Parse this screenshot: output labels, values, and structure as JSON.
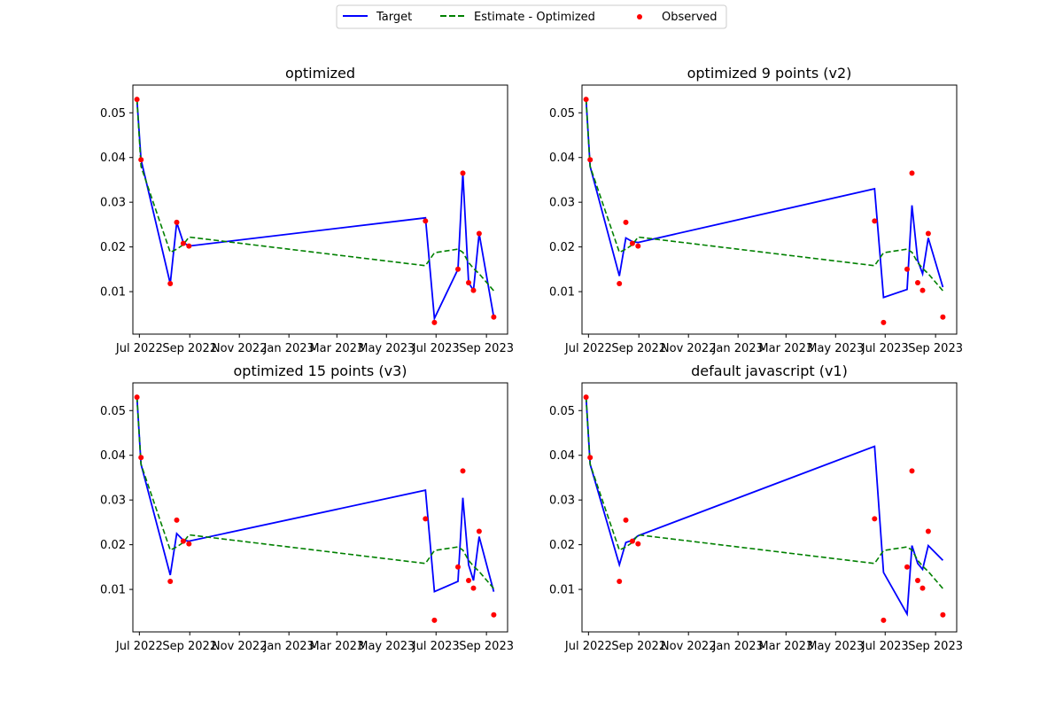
{
  "legend": {
    "entries": [
      {
        "label": "Target",
        "style": "solid",
        "color": "#0000ff"
      },
      {
        "label": "Estimate - Optimized",
        "style": "dashed",
        "color": "#008000"
      },
      {
        "label": "Observed",
        "style": "marker",
        "color": "#ff0000"
      }
    ],
    "placement": "top-center"
  },
  "chart_data": [
    {
      "type": "line",
      "title": "optimized",
      "xlabel": "",
      "ylabel": "",
      "x_ticks": [
        "Jul 2022",
        "Sep 2022",
        "Nov 2022",
        "Jan 2023",
        "Mar 2023",
        "May 2023",
        "Jul 2023",
        "Sep 2023"
      ],
      "y_ticks": [
        "0.01",
        "0.02",
        "0.03",
        "0.04",
        "0.05"
      ],
      "xlim": [
        "2022-06-23",
        "2023-09-27"
      ],
      "ylim": [
        0.0005,
        0.0562
      ],
      "grid": false,
      "series": [
        {
          "name": "Target",
          "x": [
            "2022-06-28",
            "2022-07-03",
            "2022-08-08",
            "2022-08-16",
            "2022-08-24",
            "2022-08-31",
            "2023-06-18",
            "2023-06-29",
            "2023-07-28",
            "2023-08-03",
            "2023-08-10",
            "2023-08-16",
            "2023-08-23",
            "2023-09-10"
          ],
          "y": [
            0.053,
            0.0395,
            0.0118,
            0.0255,
            0.021,
            0.0202,
            0.0265,
            0.004,
            0.015,
            0.0365,
            0.012,
            0.0103,
            0.023,
            0.0043
          ]
        },
        {
          "name": "Estimate - Optimized",
          "x": [
            "2022-06-28",
            "2022-07-03",
            "2022-08-08",
            "2022-08-16",
            "2022-08-24",
            "2022-08-31",
            "2023-06-18",
            "2023-06-29",
            "2023-07-28",
            "2023-08-03",
            "2023-08-10",
            "2023-08-16",
            "2023-08-23",
            "2023-09-10"
          ],
          "y": [
            0.053,
            0.038,
            0.0188,
            0.0195,
            0.0205,
            0.0222,
            0.0158,
            0.0187,
            0.0195,
            0.0188,
            0.0165,
            0.0152,
            0.014,
            0.0102
          ]
        },
        {
          "name": "Observed",
          "x": [
            "2022-06-28",
            "2022-07-03",
            "2022-08-08",
            "2022-08-16",
            "2022-08-24",
            "2022-08-31",
            "2023-06-18",
            "2023-06-29",
            "2023-07-28",
            "2023-08-03",
            "2023-08-10",
            "2023-08-16",
            "2023-08-23",
            "2023-09-10"
          ],
          "y": [
            0.053,
            0.0395,
            0.0118,
            0.0255,
            0.0208,
            0.0202,
            0.0258,
            0.0031,
            0.015,
            0.0365,
            0.012,
            0.0103,
            0.023,
            0.0043
          ]
        }
      ]
    },
    {
      "type": "line",
      "title": "optimized 9 points (v2)",
      "xlabel": "",
      "ylabel": "",
      "x_ticks": [
        "Jul 2022",
        "Sep 2022",
        "Nov 2022",
        "Jan 2023",
        "Mar 2023",
        "May 2023",
        "Jul 2023",
        "Sep 2023"
      ],
      "y_ticks": [
        "0.01",
        "0.02",
        "0.03",
        "0.04",
        "0.05"
      ],
      "xlim": [
        "2022-06-23",
        "2023-09-27"
      ],
      "ylim": [
        0.0005,
        0.0562
      ],
      "grid": false,
      "series": [
        {
          "name": "Target",
          "x": [
            "2022-06-28",
            "2022-07-03",
            "2022-08-08",
            "2022-08-16",
            "2022-08-24",
            "2022-08-31",
            "2023-06-18",
            "2023-06-29",
            "2023-07-28",
            "2023-08-03",
            "2023-08-10",
            "2023-08-16",
            "2023-08-23",
            "2023-09-10"
          ],
          "y": [
            0.053,
            0.038,
            0.0135,
            0.022,
            0.0212,
            0.021,
            0.033,
            0.0087,
            0.0105,
            0.0293,
            0.017,
            0.014,
            0.022,
            0.011
          ]
        },
        {
          "name": "Estimate - Optimized",
          "x": [
            "2022-06-28",
            "2022-07-03",
            "2022-08-08",
            "2022-08-16",
            "2022-08-24",
            "2022-08-31",
            "2023-06-18",
            "2023-06-29",
            "2023-07-28",
            "2023-08-03",
            "2023-08-10",
            "2023-08-16",
            "2023-08-23",
            "2023-09-10"
          ],
          "y": [
            0.053,
            0.038,
            0.0188,
            0.0195,
            0.0205,
            0.0222,
            0.0158,
            0.0187,
            0.0195,
            0.0188,
            0.0165,
            0.0152,
            0.014,
            0.0102
          ]
        },
        {
          "name": "Observed",
          "x": [
            "2022-06-28",
            "2022-07-03",
            "2022-08-08",
            "2022-08-16",
            "2022-08-24",
            "2022-08-31",
            "2023-06-18",
            "2023-06-29",
            "2023-07-28",
            "2023-08-03",
            "2023-08-10",
            "2023-08-16",
            "2023-08-23",
            "2023-09-10"
          ],
          "y": [
            0.053,
            0.0395,
            0.0118,
            0.0255,
            0.0208,
            0.0202,
            0.0258,
            0.0031,
            0.015,
            0.0365,
            0.012,
            0.0103,
            0.023,
            0.0043
          ]
        }
      ]
    },
    {
      "type": "line",
      "title": "optimized 15 points (v3)",
      "xlabel": "",
      "ylabel": "",
      "x_ticks": [
        "Jul 2022",
        "Sep 2022",
        "Nov 2022",
        "Jan 2023",
        "Mar 2023",
        "May 2023",
        "Jul 2023",
        "Sep 2023"
      ],
      "y_ticks": [
        "0.01",
        "0.02",
        "0.03",
        "0.04",
        "0.05"
      ],
      "xlim": [
        "2022-06-23",
        "2023-09-27"
      ],
      "ylim": [
        0.0005,
        0.0562
      ],
      "grid": false,
      "series": [
        {
          "name": "Target",
          "x": [
            "2022-06-28",
            "2022-07-03",
            "2022-08-08",
            "2022-08-16",
            "2022-08-24",
            "2022-08-31",
            "2023-06-18",
            "2023-06-29",
            "2023-07-28",
            "2023-08-03",
            "2023-08-10",
            "2023-08-16",
            "2023-08-23",
            "2023-09-10"
          ],
          "y": [
            0.053,
            0.038,
            0.0132,
            0.0225,
            0.021,
            0.0208,
            0.0322,
            0.0095,
            0.0118,
            0.0305,
            0.0155,
            0.012,
            0.0218,
            0.0095
          ]
        },
        {
          "name": "Estimate - Optimized",
          "x": [
            "2022-06-28",
            "2022-07-03",
            "2022-08-08",
            "2022-08-16",
            "2022-08-24",
            "2022-08-31",
            "2023-06-18",
            "2023-06-29",
            "2023-07-28",
            "2023-08-03",
            "2023-08-10",
            "2023-08-16",
            "2023-08-23",
            "2023-09-10"
          ],
          "y": [
            0.053,
            0.038,
            0.0188,
            0.0195,
            0.0205,
            0.0222,
            0.0158,
            0.0187,
            0.0195,
            0.0188,
            0.0165,
            0.0152,
            0.014,
            0.0102
          ]
        },
        {
          "name": "Observed",
          "x": [
            "2022-06-28",
            "2022-07-03",
            "2022-08-08",
            "2022-08-16",
            "2022-08-24",
            "2022-08-31",
            "2023-06-18",
            "2023-06-29",
            "2023-07-28",
            "2023-08-03",
            "2023-08-10",
            "2023-08-16",
            "2023-08-23",
            "2023-09-10"
          ],
          "y": [
            0.053,
            0.0395,
            0.0118,
            0.0255,
            0.0208,
            0.0202,
            0.0258,
            0.0031,
            0.015,
            0.0365,
            0.012,
            0.0103,
            0.023,
            0.0043
          ]
        }
      ]
    },
    {
      "type": "line",
      "title": "default javascript (v1)",
      "xlabel": "",
      "ylabel": "",
      "x_ticks": [
        "Jul 2022",
        "Sep 2022",
        "Nov 2022",
        "Jan 2023",
        "Mar 2023",
        "May 2023",
        "Jul 2023",
        "Sep 2023"
      ],
      "y_ticks": [
        "0.01",
        "0.02",
        "0.03",
        "0.04",
        "0.05"
      ],
      "xlim": [
        "2022-06-23",
        "2023-09-27"
      ],
      "ylim": [
        0.0005,
        0.0562
      ],
      "grid": false,
      "series": [
        {
          "name": "Target",
          "x": [
            "2022-06-28",
            "2022-07-03",
            "2022-08-08",
            "2022-08-16",
            "2022-08-24",
            "2022-08-31",
            "2023-06-18",
            "2023-06-29",
            "2023-07-28",
            "2023-08-03",
            "2023-08-10",
            "2023-08-16",
            "2023-08-23",
            "2023-09-10"
          ],
          "y": [
            0.053,
            0.038,
            0.0155,
            0.0205,
            0.021,
            0.022,
            0.042,
            0.0138,
            0.0045,
            0.0198,
            0.0158,
            0.0145,
            0.0198,
            0.0165
          ]
        },
        {
          "name": "Estimate - Optimized",
          "x": [
            "2022-06-28",
            "2022-07-03",
            "2022-08-08",
            "2022-08-16",
            "2022-08-24",
            "2022-08-31",
            "2023-06-18",
            "2023-06-29",
            "2023-07-28",
            "2023-08-03",
            "2023-08-10",
            "2023-08-16",
            "2023-08-23",
            "2023-09-10"
          ],
          "y": [
            0.053,
            0.038,
            0.0188,
            0.0195,
            0.0205,
            0.0222,
            0.0158,
            0.0187,
            0.0195,
            0.0188,
            0.0165,
            0.0152,
            0.014,
            0.0102
          ]
        },
        {
          "name": "Observed",
          "x": [
            "2022-06-28",
            "2022-07-03",
            "2022-08-08",
            "2022-08-16",
            "2022-08-24",
            "2022-08-31",
            "2023-06-18",
            "2023-06-29",
            "2023-07-28",
            "2023-08-03",
            "2023-08-10",
            "2023-08-16",
            "2023-08-23",
            "2023-09-10"
          ],
          "y": [
            0.053,
            0.0395,
            0.0118,
            0.0255,
            0.0208,
            0.0202,
            0.0258,
            0.0031,
            0.015,
            0.0365,
            0.012,
            0.0103,
            0.023,
            0.0043
          ]
        }
      ]
    }
  ]
}
